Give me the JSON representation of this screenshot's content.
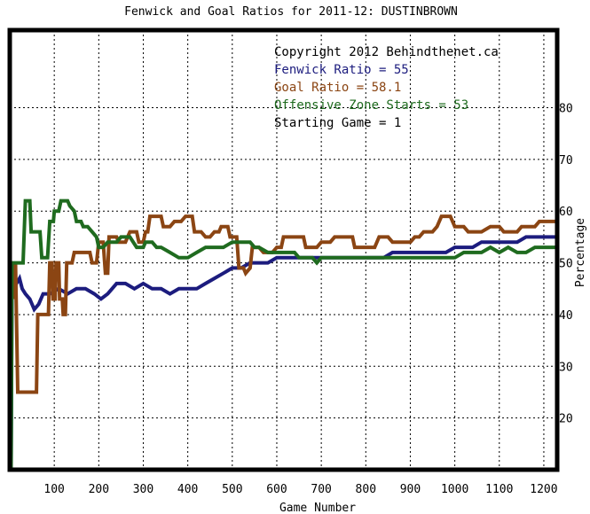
{
  "chart_data": {
    "type": "line",
    "title": "Fenwick and Goal Ratios for 2011-12: DUSTINBROWN",
    "xlabel": "Game Number",
    "ylabel": "Percentage",
    "xlim": [
      0,
      1230
    ],
    "ylim": [
      10,
      95
    ],
    "x_ticks": [
      100,
      200,
      300,
      400,
      500,
      600,
      700,
      800,
      900,
      1000,
      1100,
      1200
    ],
    "y_ticks": [
      20,
      30,
      40,
      50,
      60,
      70,
      80
    ],
    "grid": true,
    "legend_position": "top-right",
    "legend": [
      {
        "text": "Copyright 2012 Behindthenet.ca",
        "color": "#000000"
      },
      {
        "text": "Fenwick Ratio = 55",
        "color": "#1c1c7e"
      },
      {
        "text": "Goal Ratio = 58.1",
        "color": "#8b4513"
      },
      {
        "text": "Offensive Zone Starts = 53",
        "color": "#1f6b1f"
      },
      {
        "text": "Starting Game = 1",
        "color": "#000000"
      }
    ],
    "series": [
      {
        "name": "Fenwick Ratio",
        "color": "#1c1c7e",
        "points": [
          [
            3,
            10
          ],
          [
            5,
            44
          ],
          [
            10,
            45
          ],
          [
            15,
            46
          ],
          [
            22,
            47
          ],
          [
            28,
            45
          ],
          [
            35,
            44
          ],
          [
            45,
            43
          ],
          [
            55,
            41
          ],
          [
            65,
            42
          ],
          [
            75,
            44
          ],
          [
            90,
            44
          ],
          [
            110,
            45
          ],
          [
            130,
            44
          ],
          [
            150,
            45
          ],
          [
            170,
            45
          ],
          [
            190,
            44
          ],
          [
            205,
            43
          ],
          [
            220,
            44
          ],
          [
            240,
            46
          ],
          [
            260,
            46
          ],
          [
            280,
            45
          ],
          [
            300,
            46
          ],
          [
            320,
            45
          ],
          [
            340,
            45
          ],
          [
            360,
            44
          ],
          [
            380,
            45
          ],
          [
            400,
            45
          ],
          [
            420,
            45
          ],
          [
            440,
            46
          ],
          [
            460,
            47
          ],
          [
            480,
            48
          ],
          [
            500,
            49
          ],
          [
            520,
            49
          ],
          [
            540,
            50
          ],
          [
            560,
            50
          ],
          [
            580,
            50
          ],
          [
            600,
            51
          ],
          [
            620,
            51
          ],
          [
            640,
            51
          ],
          [
            660,
            51
          ],
          [
            680,
            51
          ],
          [
            700,
            51
          ],
          [
            720,
            51
          ],
          [
            740,
            51
          ],
          [
            760,
            51
          ],
          [
            780,
            51
          ],
          [
            800,
            51
          ],
          [
            820,
            51
          ],
          [
            840,
            51
          ],
          [
            860,
            52
          ],
          [
            880,
            52
          ],
          [
            900,
            52
          ],
          [
            920,
            52
          ],
          [
            940,
            52
          ],
          [
            960,
            52
          ],
          [
            980,
            52
          ],
          [
            1000,
            53
          ],
          [
            1020,
            53
          ],
          [
            1040,
            53
          ],
          [
            1060,
            54
          ],
          [
            1080,
            54
          ],
          [
            1100,
            54
          ],
          [
            1120,
            54
          ],
          [
            1140,
            54
          ],
          [
            1160,
            55
          ],
          [
            1180,
            55
          ],
          [
            1200,
            55
          ],
          [
            1225,
            55
          ]
        ]
      },
      {
        "name": "Goal Ratio",
        "color": "#8b4513",
        "points": [
          [
            3,
            50
          ],
          [
            8,
            43
          ],
          [
            13,
            50
          ],
          [
            18,
            25
          ],
          [
            60,
            25
          ],
          [
            63,
            40
          ],
          [
            80,
            40
          ],
          [
            87,
            40
          ],
          [
            90,
            50
          ],
          [
            95,
            50
          ],
          [
            97,
            43
          ],
          [
            102,
            43
          ],
          [
            104,
            50
          ],
          [
            110,
            50
          ],
          [
            112,
            43
          ],
          [
            118,
            43
          ],
          [
            120,
            40
          ],
          [
            125,
            40
          ],
          [
            128,
            50
          ],
          [
            140,
            50
          ],
          [
            145,
            52
          ],
          [
            180,
            52
          ],
          [
            185,
            50
          ],
          [
            195,
            50
          ],
          [
            200,
            54
          ],
          [
            210,
            54
          ],
          [
            215,
            48
          ],
          [
            220,
            48
          ],
          [
            223,
            55
          ],
          [
            240,
            55
          ],
          [
            245,
            54
          ],
          [
            260,
            54
          ],
          [
            270,
            56
          ],
          [
            285,
            56
          ],
          [
            290,
            54
          ],
          [
            300,
            54
          ],
          [
            305,
            56
          ],
          [
            310,
            56
          ],
          [
            315,
            59
          ],
          [
            340,
            59
          ],
          [
            345,
            57
          ],
          [
            350,
            57
          ],
          [
            360,
            57
          ],
          [
            370,
            58
          ],
          [
            385,
            58
          ],
          [
            395,
            59
          ],
          [
            410,
            59
          ],
          [
            415,
            56
          ],
          [
            430,
            56
          ],
          [
            440,
            55
          ],
          [
            450,
            55
          ],
          [
            460,
            56
          ],
          [
            470,
            56
          ],
          [
            475,
            57
          ],
          [
            490,
            57
          ],
          [
            495,
            55
          ],
          [
            510,
            55
          ],
          [
            515,
            49
          ],
          [
            525,
            49
          ],
          [
            530,
            48
          ],
          [
            540,
            49
          ],
          [
            545,
            53
          ],
          [
            560,
            53
          ],
          [
            570,
            52
          ],
          [
            590,
            52
          ],
          [
            600,
            53
          ],
          [
            610,
            53
          ],
          [
            615,
            55
          ],
          [
            660,
            55
          ],
          [
            665,
            53
          ],
          [
            690,
            53
          ],
          [
            700,
            54
          ],
          [
            720,
            54
          ],
          [
            730,
            55
          ],
          [
            770,
            55
          ],
          [
            775,
            53
          ],
          [
            820,
            53
          ],
          [
            830,
            55
          ],
          [
            850,
            55
          ],
          [
            860,
            54
          ],
          [
            900,
            54
          ],
          [
            910,
            55
          ],
          [
            920,
            55
          ],
          [
            930,
            56
          ],
          [
            950,
            56
          ],
          [
            960,
            57
          ],
          [
            970,
            59
          ],
          [
            990,
            59
          ],
          [
            1000,
            57
          ],
          [
            1020,
            57
          ],
          [
            1030,
            56
          ],
          [
            1060,
            56
          ],
          [
            1080,
            57
          ],
          [
            1100,
            57
          ],
          [
            1110,
            56
          ],
          [
            1140,
            56
          ],
          [
            1150,
            57
          ],
          [
            1180,
            57
          ],
          [
            1190,
            58
          ],
          [
            1225,
            58
          ]
        ]
      },
      {
        "name": "Offensive Zone Starts",
        "color": "#1f6b1f",
        "points": [
          [
            3,
            10
          ],
          [
            5,
            50
          ],
          [
            18,
            50
          ],
          [
            30,
            50
          ],
          [
            35,
            62
          ],
          [
            45,
            62
          ],
          [
            48,
            56
          ],
          [
            68,
            56
          ],
          [
            72,
            51
          ],
          [
            85,
            51
          ],
          [
            90,
            58
          ],
          [
            98,
            58
          ],
          [
            100,
            60
          ],
          [
            110,
            60
          ],
          [
            115,
            62
          ],
          [
            130,
            62
          ],
          [
            135,
            61
          ],
          [
            145,
            60
          ],
          [
            150,
            58
          ],
          [
            160,
            58
          ],
          [
            165,
            57
          ],
          [
            175,
            57
          ],
          [
            185,
            56
          ],
          [
            195,
            55
          ],
          [
            200,
            53
          ],
          [
            210,
            53
          ],
          [
            220,
            54
          ],
          [
            240,
            54
          ],
          [
            250,
            55
          ],
          [
            270,
            55
          ],
          [
            285,
            53
          ],
          [
            300,
            53
          ],
          [
            305,
            54
          ],
          [
            320,
            54
          ],
          [
            330,
            53
          ],
          [
            340,
            53
          ],
          [
            360,
            52
          ],
          [
            380,
            51
          ],
          [
            400,
            51
          ],
          [
            420,
            52
          ],
          [
            440,
            53
          ],
          [
            460,
            53
          ],
          [
            480,
            53
          ],
          [
            500,
            54
          ],
          [
            520,
            54
          ],
          [
            540,
            54
          ],
          [
            550,
            53
          ],
          [
            560,
            53
          ],
          [
            580,
            52
          ],
          [
            600,
            52
          ],
          [
            620,
            52
          ],
          [
            640,
            52
          ],
          [
            650,
            51
          ],
          [
            670,
            51
          ],
          [
            680,
            51
          ],
          [
            690,
            50
          ],
          [
            700,
            51
          ],
          [
            720,
            51
          ],
          [
            760,
            51
          ],
          [
            800,
            51
          ],
          [
            840,
            51
          ],
          [
            880,
            51
          ],
          [
            900,
            51
          ],
          [
            920,
            51
          ],
          [
            940,
            51
          ],
          [
            960,
            51
          ],
          [
            980,
            51
          ],
          [
            1000,
            51
          ],
          [
            1020,
            52
          ],
          [
            1040,
            52
          ],
          [
            1060,
            52
          ],
          [
            1080,
            53
          ],
          [
            1100,
            52
          ],
          [
            1120,
            53
          ],
          [
            1140,
            52
          ],
          [
            1160,
            52
          ],
          [
            1180,
            53
          ],
          [
            1200,
            53
          ],
          [
            1225,
            53
          ]
        ]
      }
    ]
  }
}
